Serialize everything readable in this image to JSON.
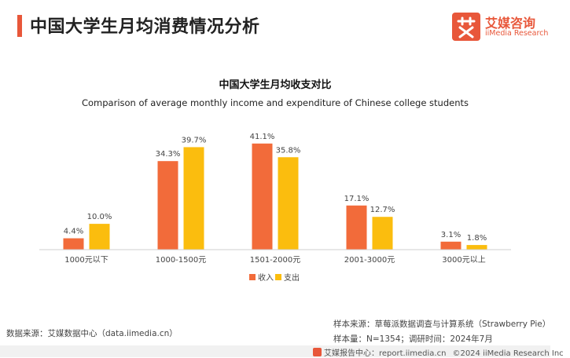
{
  "page_title": "中国大学生月均消费情况分析",
  "logo": {
    "cn": "艾媒咨询",
    "en": "iiMedia Research"
  },
  "chart_data": {
    "type": "bar",
    "title": "中国大学生月均收支对比",
    "subtitle": "Comparison of average monthly income and expenditure of Chinese college students",
    "categories": [
      "1000元以下",
      "1000-1500元",
      "1501-2000元",
      "2001-3000元",
      "3000元以上"
    ],
    "series": [
      {
        "name": "收入",
        "values": [
          4.4,
          34.3,
          41.1,
          17.1,
          3.1
        ],
        "labels": [
          "4.4%",
          "34.3%",
          "41.1%",
          "17.1%",
          "3.1%"
        ],
        "color": "#f26b3a"
      },
      {
        "name": "支出",
        "values": [
          10.0,
          39.7,
          35.8,
          12.7,
          1.8
        ],
        "labels": [
          "10.0%",
          "39.7%",
          "35.8%",
          "12.7%",
          "1.8%"
        ],
        "color": "#fbbd0e"
      }
    ],
    "unit": "%",
    "ylim": [
      0,
      45
    ],
    "grid": false,
    "legend_position": "bottom-center"
  },
  "footer": {
    "data_source": "数据来源：艾媒数据中心（data.iimedia.cn）",
    "sample_source": "样本来源：草莓派数据调查与计算系统（Strawberry Pie）",
    "sample_size": "样本量：N=1354；调研时间：2024年7月",
    "brand_center": "艾媒报告中心：report.iimedia.cn",
    "copyright": "©2024  iiMedia Research  Inc"
  }
}
